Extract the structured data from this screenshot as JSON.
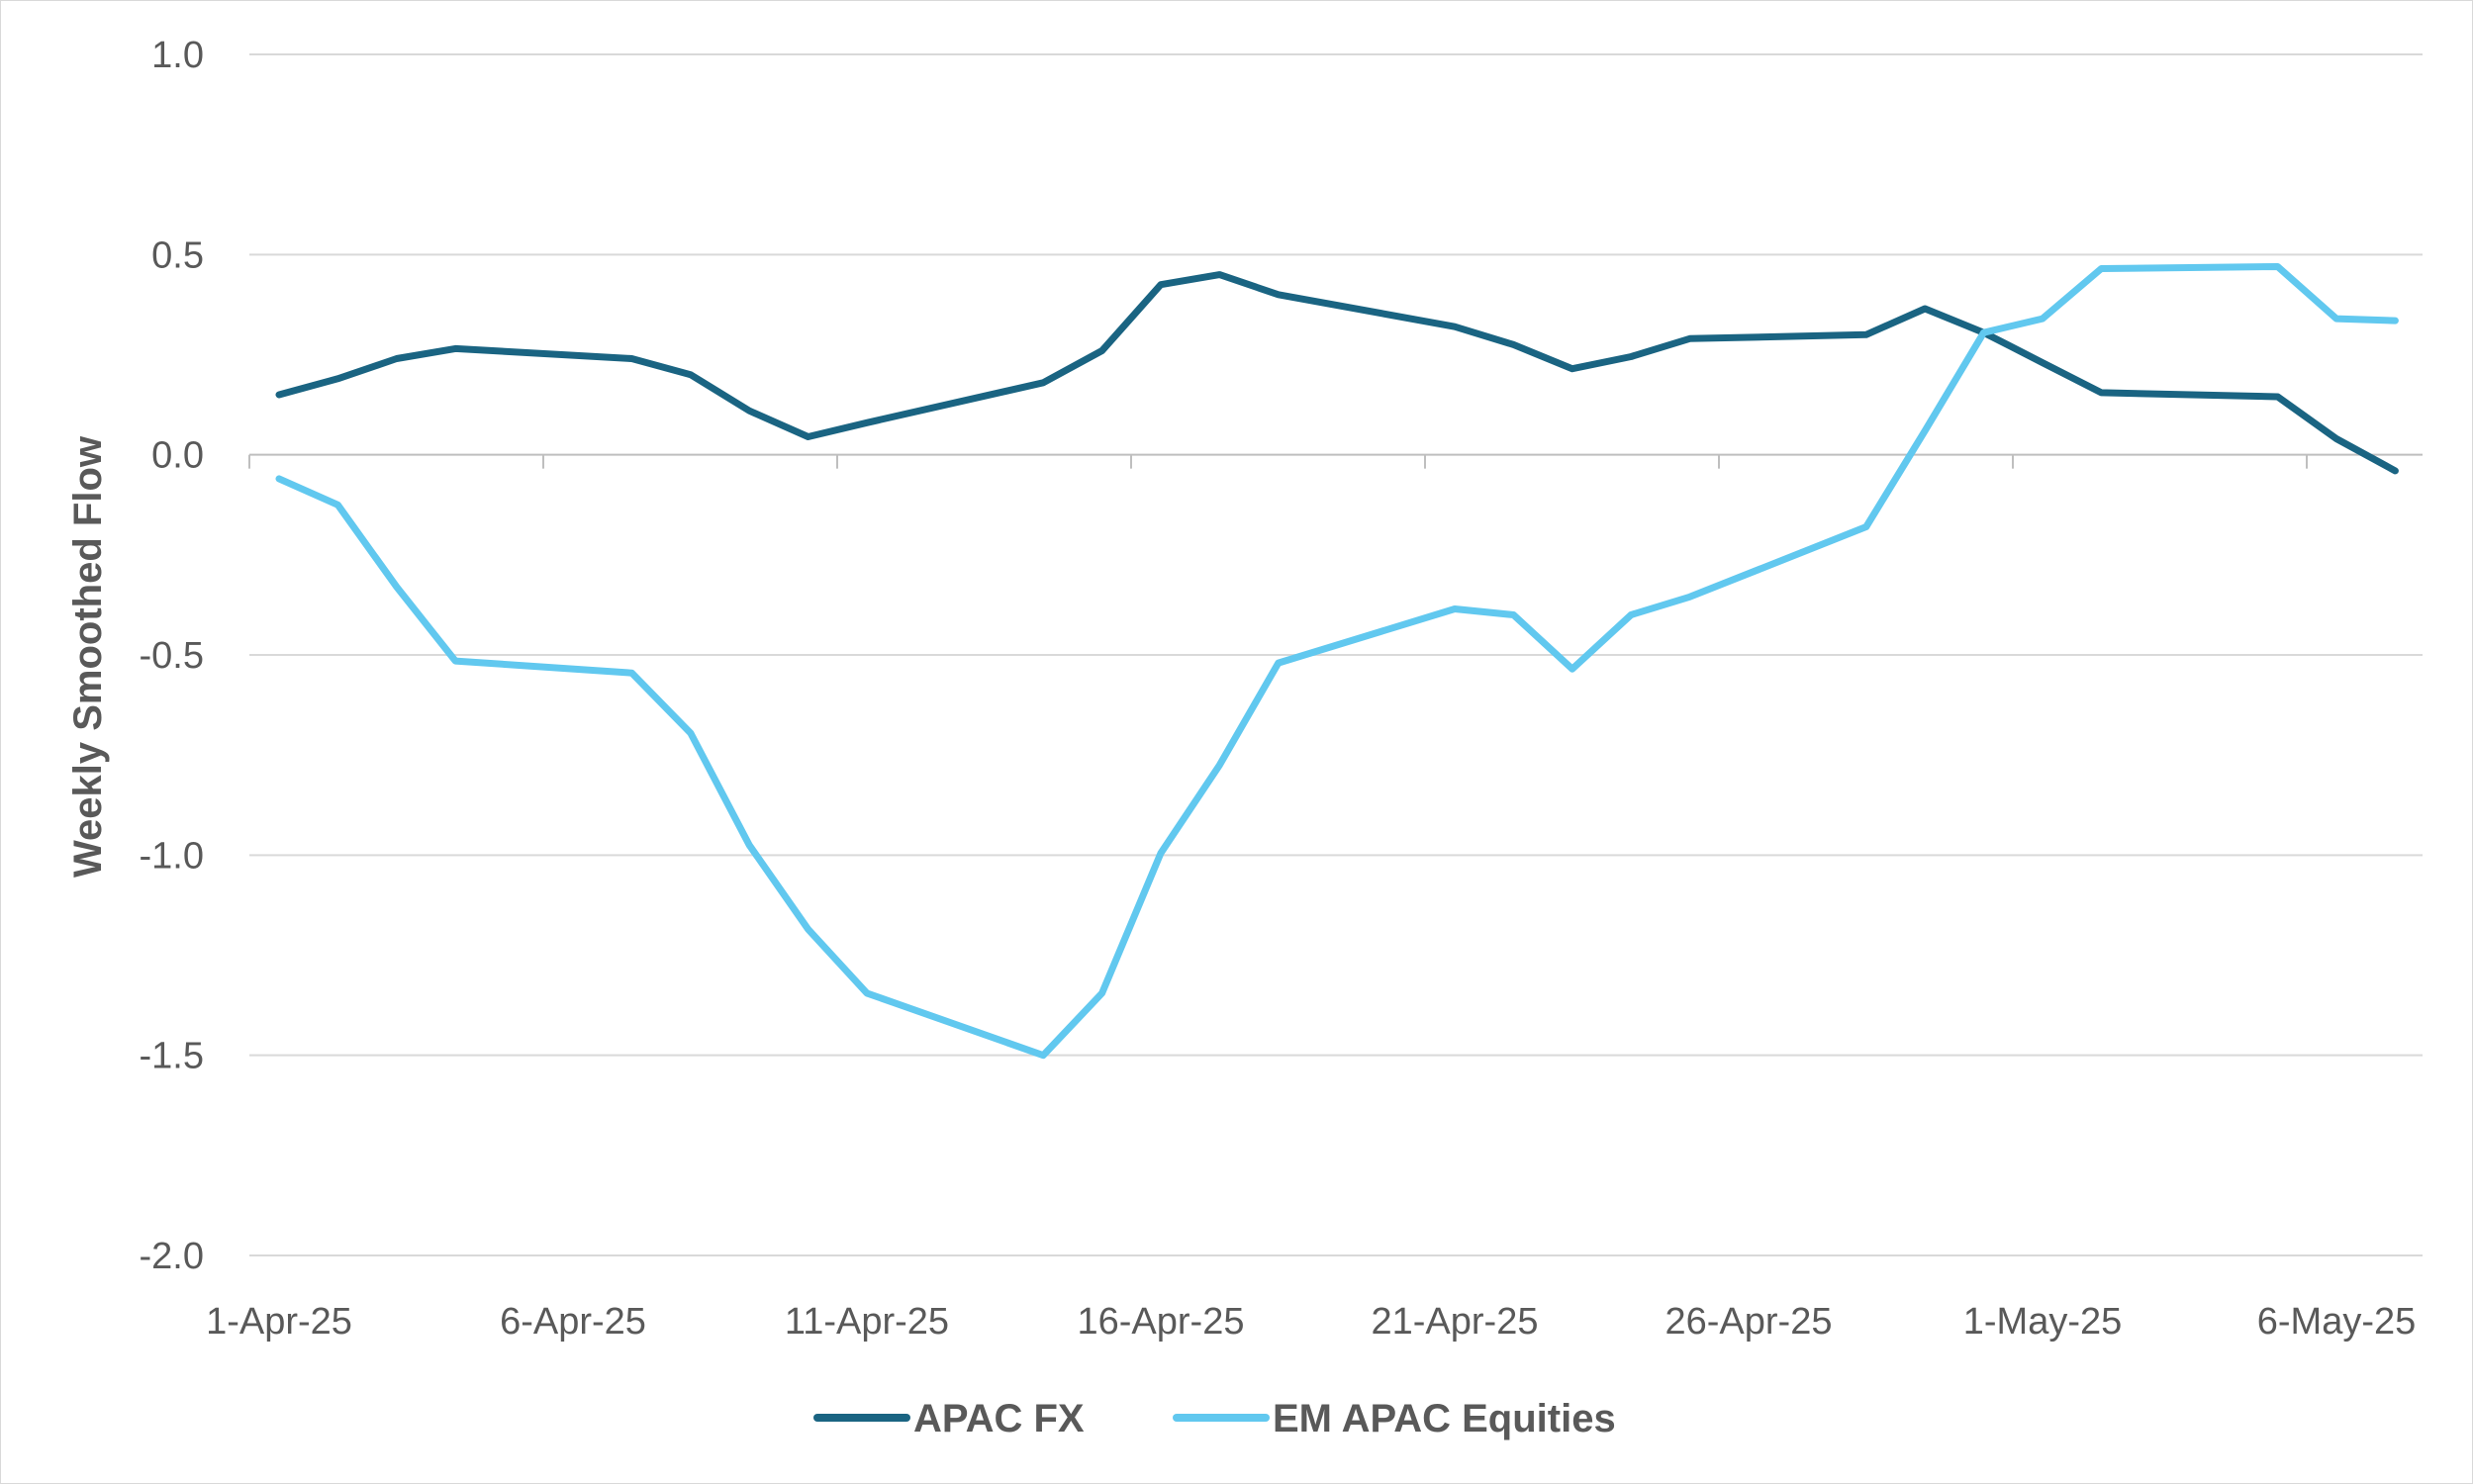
{
  "chart_data": {
    "type": "line",
    "title": "",
    "xlabel": "",
    "ylabel": "Weekly Smoothed Flow",
    "ylim": [
      -2.0,
      1.0
    ],
    "yticks": [
      1.0,
      0.5,
      0.0,
      -0.5,
      -1.0,
      -1.5,
      -2.0
    ],
    "ytick_labels": [
      "1.0",
      "0.5",
      "0.0",
      "-0.5",
      "-1.0",
      "-1.5",
      "-2.0"
    ],
    "x": [
      "1-Apr-25",
      "2-Apr-25",
      "3-Apr-25",
      "4-Apr-25",
      "7-Apr-25",
      "8-Apr-25",
      "9-Apr-25",
      "10-Apr-25",
      "11-Apr-25",
      "14-Apr-25",
      "15-Apr-25",
      "16-Apr-25",
      "17-Apr-25",
      "18-Apr-25",
      "21-Apr-25",
      "22-Apr-25",
      "23-Apr-25",
      "24-Apr-25",
      "25-Apr-25",
      "28-Apr-25",
      "29-Apr-25",
      "30-Apr-25",
      "1-May-25",
      "2-May-25",
      "5-May-25",
      "6-May-25",
      "7-May-25"
    ],
    "xtick_labels": [
      "1-Apr-25",
      "6-Apr-25",
      "11-Apr-25",
      "16-Apr-25",
      "21-Apr-25",
      "26-Apr-25",
      "1-May-25",
      "6-May-25"
    ],
    "grid": true,
    "legend_position": "bottom",
    "series": [
      {
        "name": "APAC FX",
        "color": "#1a6482",
        "values": [
          0.15,
          0.19,
          0.24,
          0.265,
          0.24,
          0.2,
          0.11,
          0.045,
          0.08,
          0.18,
          0.26,
          0.425,
          0.45,
          0.4,
          0.32,
          0.275,
          0.215,
          0.245,
          0.29,
          0.3,
          0.365,
          0.305,
          0.23,
          0.155,
          0.145,
          0.04,
          -0.04
        ]
      },
      {
        "name": "EM APAC Equities",
        "color": "#61c8ef",
        "values": [
          -0.06,
          -0.125,
          -0.33,
          -0.515,
          -0.545,
          -0.695,
          -0.975,
          -1.185,
          -1.345,
          -1.5,
          -1.345,
          -0.995,
          -0.775,
          -0.52,
          -0.385,
          -0.4,
          -0.535,
          -0.4,
          -0.355,
          -0.18,
          0.06,
          0.305,
          0.34,
          0.465,
          0.47,
          0.34,
          0.335
        ]
      }
    ]
  }
}
